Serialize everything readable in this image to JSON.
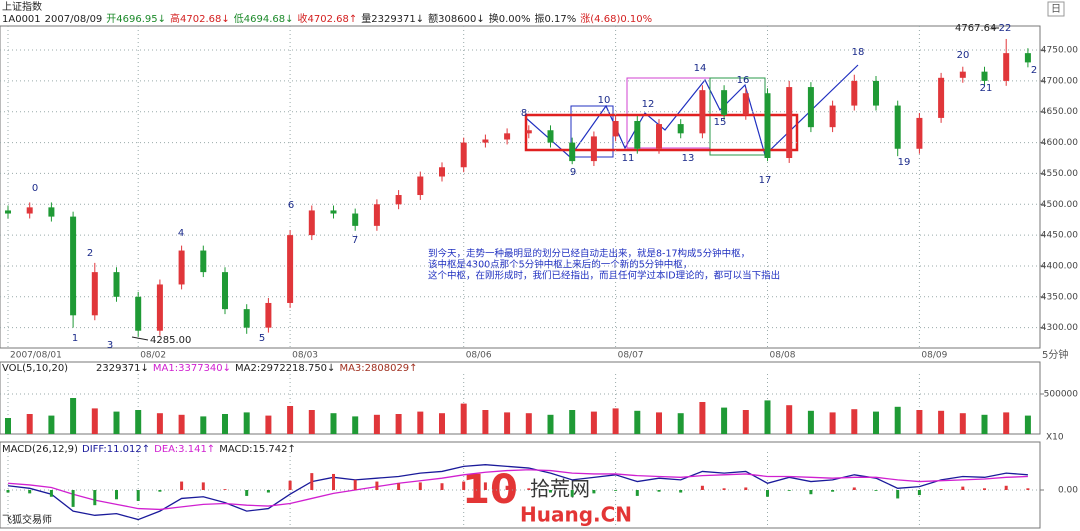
{
  "title": "上证指数",
  "period": "日",
  "interval": "5分钟",
  "footer": "飞狐交易师",
  "watermark": {
    "logo": "10",
    "name": "拾荒网",
    "site": "Huang.CN"
  },
  "header": [
    {
      "text": "1A0001",
      "color": "#222"
    },
    {
      "text": "2007/08/09",
      "color": "#222"
    },
    {
      "text": "开4696.95↓",
      "color": "#1c8a2a"
    },
    {
      "text": "高4702.68↓",
      "color": "#d42020"
    },
    {
      "text": "低4694.68↓",
      "color": "#1c8a2a"
    },
    {
      "text": "收4702.68↑",
      "color": "#d42020"
    },
    {
      "text": "量2329371↓",
      "color": "#222"
    },
    {
      "text": "额308600↓",
      "color": "#222"
    },
    {
      "text": "换0.00%",
      "color": "#222"
    },
    {
      "text": "振0.17%",
      "color": "#222"
    },
    {
      "text": "涨(4.68)0.10%",
      "color": "#d42020"
    }
  ],
  "annotations": {
    "wave_labels": [
      "0",
      "1",
      "2",
      "3",
      "4",
      "5",
      "6",
      "7",
      "8",
      "9",
      "10",
      "11",
      "12",
      "13",
      "14",
      "15",
      "16",
      "17",
      "18",
      "19",
      "20",
      "21",
      "22",
      "2"
    ],
    "high_label": "4767.64",
    "low_label": "4285.00",
    "note": [
      "到今天，走势一种最明显的划分已经自动走出来，就是8-17构成5分钟中枢，",
      "该中枢是4300点那个5分钟中枢上来后的一个新的5分钟中枢，",
      "这个中枢，在刚形成时，我们已经指出，而且任何学过本ID理论的，都可以当下指出"
    ]
  },
  "chart_data": [
    {
      "type": "candlestick",
      "up_color": "#e0363a",
      "down_color": "#1f9a35",
      "grid": true,
      "categories": [
        "2007/08/01",
        null,
        null,
        null,
        null,
        null,
        "08/02",
        null,
        null,
        null,
        null,
        null,
        null,
        "08/03",
        null,
        null,
        null,
        null,
        null,
        null,
        null,
        "08/06",
        null,
        null,
        null,
        null,
        null,
        null,
        "08/07",
        null,
        null,
        null,
        null,
        null,
        null,
        "08/08",
        null,
        null,
        null,
        null,
        null,
        null,
        "08/09",
        null,
        null,
        null,
        null,
        null
      ],
      "open": [
        4490,
        4485,
        4495,
        4480,
        4320,
        4390,
        4350,
        4295,
        4370,
        4425,
        4390,
        4330,
        4300,
        4340,
        4450,
        4490,
        4485,
        4465,
        4500,
        4515,
        4545,
        4560,
        4600,
        4605,
        4615,
        4620,
        4600,
        4570,
        4610,
        4635,
        4590,
        4630,
        4615,
        4685,
        4645,
        4680,
        4575,
        4690,
        4625,
        4660,
        4700,
        4660,
        4590,
        4640,
        4705,
        4715,
        4700,
        4745
      ],
      "high": [
        4498,
        4503,
        4503,
        4488,
        4405,
        4398,
        4358,
        4378,
        4433,
        4433,
        4398,
        4338,
        4348,
        4458,
        4498,
        4498,
        4493,
        4508,
        4523,
        4553,
        4568,
        4608,
        4613,
        4623,
        4628,
        4628,
        4608,
        4618,
        4643,
        4643,
        4638,
        4638,
        4693,
        4693,
        4688,
        4688,
        4700,
        4698,
        4668,
        4710,
        4708,
        4668,
        4648,
        4713,
        4723,
        4723,
        4768,
        4753
      ],
      "low": [
        4477,
        4477,
        4472,
        4300,
        4312,
        4342,
        4285,
        4287,
        4362,
        4382,
        4322,
        4290,
        4292,
        4332,
        4442,
        4477,
        4457,
        4457,
        4492,
        4507,
        4537,
        4552,
        4592,
        4597,
        4607,
        4592,
        4565,
        4562,
        4602,
        4582,
        4582,
        4607,
        4607,
        4637,
        4637,
        4570,
        4567,
        4617,
        4617,
        4652,
        4652,
        4578,
        4582,
        4632,
        4697,
        4692,
        4692,
        4722
      ],
      "close": [
        4485,
        4495,
        4480,
        4320,
        4390,
        4350,
        4295,
        4370,
        4425,
        4390,
        4330,
        4300,
        4340,
        4450,
        4490,
        4485,
        4465,
        4500,
        4515,
        4545,
        4560,
        4600,
        4605,
        4615,
        4620,
        4600,
        4570,
        4610,
        4635,
        4590,
        4630,
        4615,
        4685,
        4645,
        4680,
        4575,
        4690,
        4625,
        4660,
        4700,
        4660,
        4590,
        4640,
        4705,
        4715,
        4700,
        4745,
        4730
      ],
      "ylim": [
        4267,
        4789
      ],
      "yticks": [
        {
          "value": 4300,
          "label": "4300.00"
        },
        {
          "value": 4350,
          "label": "4350.00"
        },
        {
          "value": 4400,
          "label": "4400.00"
        },
        {
          "value": 4450,
          "label": "4450.00"
        },
        {
          "value": 4500,
          "label": "4500.00"
        },
        {
          "value": 4550,
          "label": "4550.00"
        },
        {
          "value": 4600,
          "label": "4600.00"
        },
        {
          "value": 4650,
          "label": "4650.00"
        },
        {
          "value": 4700,
          "label": "4700.00"
        },
        {
          "value": 4750,
          "label": "4750.00"
        }
      ]
    },
    {
      "type": "bar",
      "title": "VOL(5,10,20)",
      "y_unit": "X10",
      "series": [
        {
          "name": "2329371↓",
          "values": [
            200000,
            250000,
            230000,
            450000,
            320000,
            280000,
            300000,
            260000,
            240000,
            220000,
            250000,
            270000,
            230000,
            350000,
            300000,
            260000,
            220000,
            240000,
            250000,
            280000,
            260000,
            380000,
            300000,
            270000,
            260000,
            240000,
            300000,
            280000,
            320000,
            290000,
            270000,
            260000,
            400000,
            330000,
            300000,
            420000,
            360000,
            290000,
            270000,
            310000,
            280000,
            340000,
            300000,
            290000,
            260000,
            240000,
            270000,
            230000
          ]
        }
      ],
      "ma_labels": [
        {
          "text": "MA1:3377340↓",
          "color": "#d020d0"
        },
        {
          "text": "MA2:2972218.750↓",
          "color": "#222"
        },
        {
          "text": "MA3:2808029↑",
          "color": "#a03020"
        }
      ],
      "ylim": [
        0,
        750000
      ],
      "yticks": [
        500000
      ]
    },
    {
      "type": "macd",
      "title": "MACD(26,12,9)",
      "series": [
        {
          "name": "DIFF:11.012↑",
          "color": "#1a1a9a",
          "values": [
            5,
            2,
            -5,
            -25,
            -30,
            -28,
            -35,
            -25,
            -10,
            -8,
            -15,
            -25,
            -22,
            -5,
            10,
            15,
            12,
            14,
            16,
            20,
            22,
            28,
            30,
            28,
            26,
            20,
            12,
            15,
            18,
            10,
            14,
            12,
            22,
            20,
            22,
            8,
            15,
            10,
            12,
            18,
            14,
            2,
            4,
            12,
            16,
            15,
            20,
            18
          ]
        },
        {
          "name": "DEA:3.141↑",
          "color": "#d020d0",
          "values": [
            8,
            6,
            3,
            -5,
            -12,
            -17,
            -22,
            -23,
            -20,
            -17,
            -16,
            -18,
            -19,
            -16,
            -10,
            -4,
            0,
            4,
            8,
            11,
            14,
            18,
            21,
            23,
            24,
            23,
            20,
            19,
            19,
            17,
            16,
            15,
            17,
            18,
            19,
            16,
            16,
            15,
            14,
            15,
            15,
            12,
            10,
            11,
            12,
            13,
            15,
            16
          ]
        },
        {
          "name": "MACD:15.742↑",
          "color": "#222",
          "up_color": "#e0363a",
          "down_color": "#1f9a35",
          "values": [
            -3,
            -4,
            -8,
            -20,
            -18,
            -11,
            -13,
            -2,
            10,
            9,
            1,
            -7,
            -3,
            11,
            20,
            19,
            12,
            10,
            8,
            9,
            8,
            10,
            9,
            5,
            2,
            -3,
            -8,
            -4,
            -1,
            -7,
            -2,
            -3,
            5,
            2,
            3,
            -8,
            -1,
            -5,
            -2,
            3,
            -1,
            -10,
            -6,
            1,
            4,
            2,
            5,
            2
          ]
        }
      ],
      "ylim": [
        -45,
        45
      ],
      "yticks": [
        {
          "value": 0,
          "label": "0.00"
        }
      ]
    }
  ]
}
